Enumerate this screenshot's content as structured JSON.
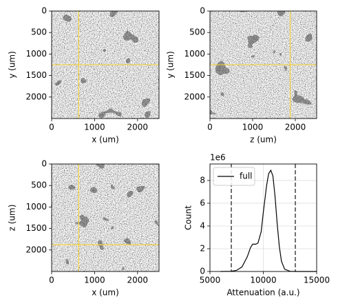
{
  "chart_data": [
    {
      "type": "image",
      "xlabel": "x (um)",
      "ylabel": "y (um)",
      "xlim": [
        0,
        2500
      ],
      "ylim": [
        2500,
        0
      ],
      "xticks": [
        0,
        1000,
        2000
      ],
      "yticks": [
        0,
        500,
        1000,
        1500,
        2000
      ],
      "crosshair": {
        "x": 630,
        "y": 1250
      },
      "crosshair_color": "#f2d24a"
    },
    {
      "type": "image",
      "xlabel": "z (um)",
      "ylabel": "y (um)",
      "xlim": [
        0,
        2500
      ],
      "ylim": [
        2500,
        0
      ],
      "xticks": [
        0,
        1000,
        2000
      ],
      "yticks": [
        0,
        500,
        1000,
        1500,
        2000
      ],
      "crosshair": {
        "x": 1880,
        "y": 1250
      },
      "crosshair_color": "#f2d24a"
    },
    {
      "type": "image",
      "xlabel": "x (um)",
      "ylabel": "z (um)",
      "xlim": [
        0,
        2500
      ],
      "ylim": [
        2500,
        0
      ],
      "xticks": [
        0,
        1000,
        2000
      ],
      "yticks": [
        0,
        500,
        1000,
        1500,
        2000
      ],
      "crosshair": {
        "x": 630,
        "y": 1880
      },
      "crosshair_color": "#f2d24a"
    },
    {
      "type": "line",
      "xlabel": "Attenuation (a.u.)",
      "ylabel": "Count",
      "y_offset_label": "1e6",
      "xlim": [
        5000,
        15000
      ],
      "ylim": [
        0,
        9.45
      ],
      "xticks": [
        5000,
        10000,
        15000
      ],
      "yticks": [
        0,
        2,
        4,
        6,
        8
      ],
      "grid": true,
      "legend": "upper left",
      "x": [
        6000,
        7000,
        7500,
        8000,
        8500,
        8800,
        9000,
        9300,
        9500,
        9800,
        10000,
        10300,
        10500,
        10700,
        10900,
        11100,
        11300,
        11500,
        11700,
        12000,
        12500,
        13000,
        14000,
        15000
      ],
      "series": [
        {
          "name": "full",
          "color": "#000000",
          "values": [
            0,
            0.02,
            0.1,
            0.4,
            1.3,
            2.1,
            2.4,
            2.4,
            2.5,
            3.5,
            5.2,
            7.5,
            8.6,
            8.9,
            8.4,
            6.6,
            4.2,
            2.2,
            0.9,
            0.2,
            0.02,
            0,
            0,
            0
          ]
        }
      ],
      "vlines": [
        7000,
        13000
      ],
      "vline_color": "#404040"
    }
  ]
}
